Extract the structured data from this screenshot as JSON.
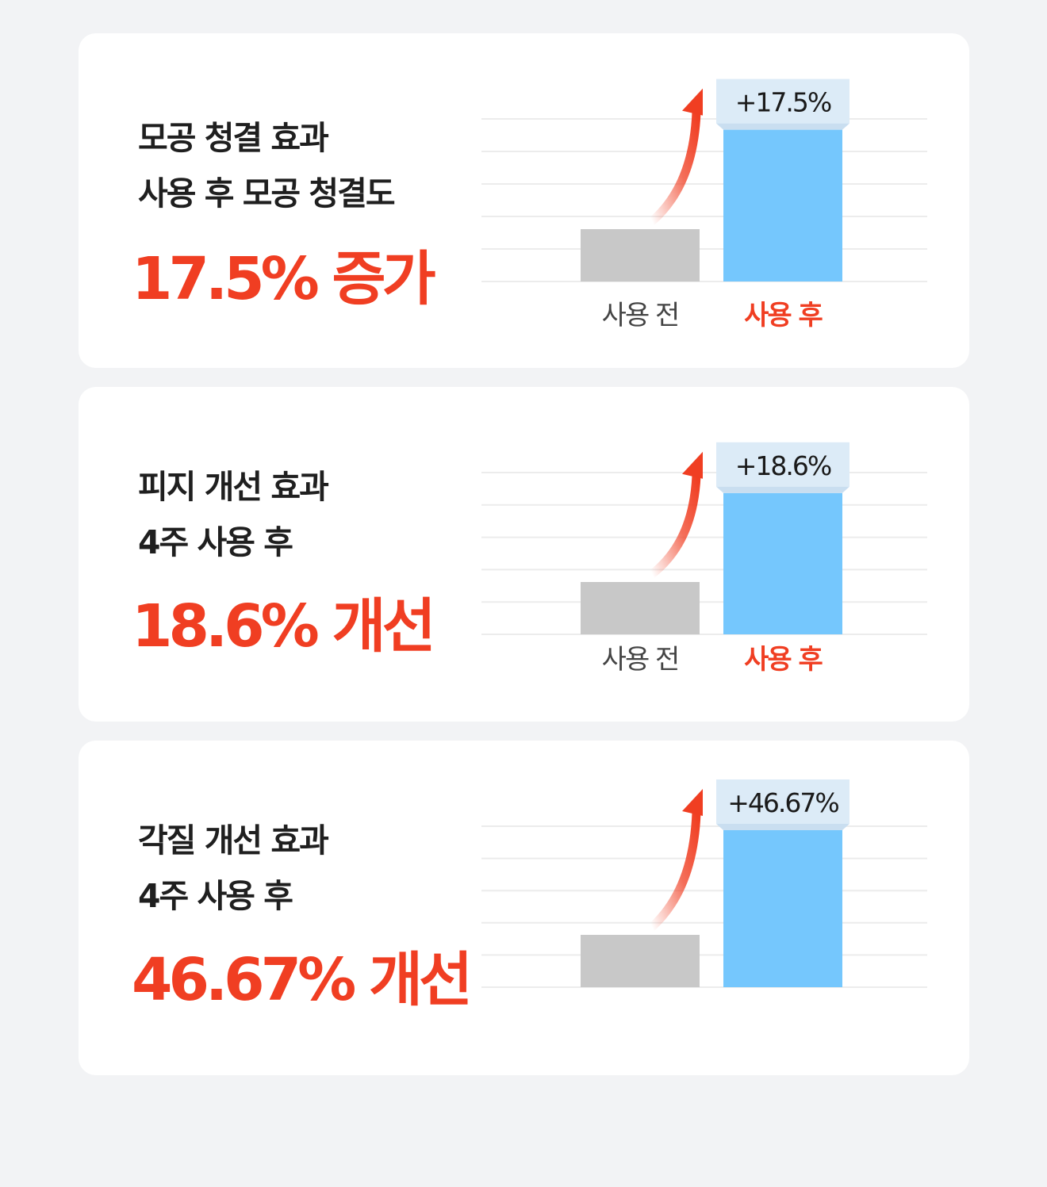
{
  "cards": [
    {
      "title_line1": "모공 청결 효과",
      "title_line2": "사용 후 모공 청결도",
      "result": "17.5% 증가"
    },
    {
      "title_line1": "피지 개선 효과",
      "title_line2": "4주 사용 후",
      "result": "18.6% 개선"
    },
    {
      "title_line1": "각질 개선 효과",
      "title_line2": "4주 사용 후",
      "result": "46.67% 개선"
    }
  ],
  "chart_data": [
    {
      "type": "bar",
      "categories": [
        "사용 전",
        "사용 후"
      ],
      "values": [
        1.0,
        2.9
      ],
      "annotation": "+17.5%",
      "show_category_labels": true,
      "colors": [
        "#c8c8c8",
        "#75c7fd"
      ]
    },
    {
      "type": "bar",
      "categories": [
        "사용 전",
        "사용 후"
      ],
      "values": [
        1.0,
        2.7
      ],
      "annotation": "+18.6%",
      "show_category_labels": true,
      "colors": [
        "#c8c8c8",
        "#75c7fd"
      ]
    },
    {
      "type": "bar",
      "categories": [
        "",
        ""
      ],
      "values": [
        1.0,
        3.0
      ],
      "annotation": "+46.67%",
      "show_category_labels": false,
      "colors": [
        "#c8c8c8",
        "#75c7fd"
      ]
    }
  ],
  "colors": {
    "accent": "#f03e22",
    "bar_before": "#c8c8c8",
    "bar_after": "#75c7fd",
    "annotation_bg": "#dcebf7",
    "card_bg": "#ffffff",
    "page_bg": "#f2f3f5"
  }
}
